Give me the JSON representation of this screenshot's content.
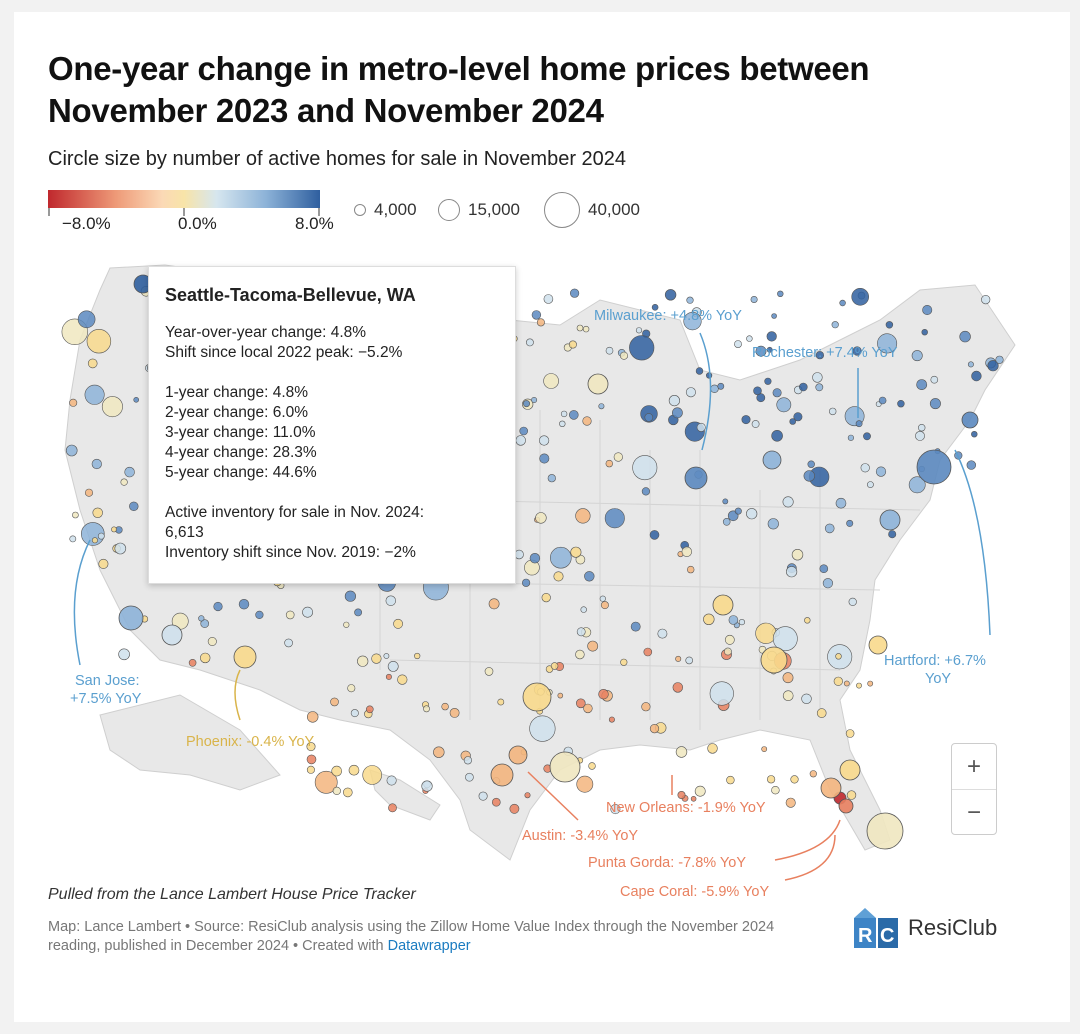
{
  "title": "One-year change in metro-level home prices between November 2023 and November 2024",
  "subtitle": "Circle size by number of active homes for sale in November 2024",
  "color_legend": {
    "min_label": "−8.0%",
    "mid_label": "0.0%",
    "max_label": "8.0%",
    "colors": [
      "#c0282d",
      "#e9896a",
      "#fbd6b0",
      "#f8e4a8",
      "#cfe0ec",
      "#7fa9d3",
      "#2f5f9f"
    ]
  },
  "size_legend": {
    "small": "4,000",
    "medium": "15,000",
    "large": "40,000"
  },
  "tooltip": {
    "title": "Seattle-Tacoma-Bellevue, WA",
    "yoy": "Year-over-year change: 4.8%",
    "shift_peak": "Shift since local 2022 peak: −5.2%",
    "change_1y": "1-year change: 4.8%",
    "change_2y": "2-year change: 6.0%",
    "change_3y": "3-year change: 11.0%",
    "change_4y": "4-year change: 28.3%",
    "change_5y": "5-year change: 44.6%",
    "inventory_label": "Active inventory for sale in Nov. 2024:",
    "inventory_value": "6,613",
    "inventory_shift": "Inventory shift since Nov. 2019: −2%"
  },
  "callouts": {
    "milwaukee": "Milwaukee: +4.8% YoY",
    "rochester": "Rochester: +7.4% YoY",
    "hartford_1": "Hartford: +6.7%",
    "hartford_2": "YoY",
    "san_jose_1": "San Jose:",
    "san_jose_2": "+7.5% YoY",
    "phoenix": "Phoenix: -0.4% YoY",
    "austin": "Austin: -3.4% YoY",
    "new_orleans": "New Orleans: -1.9% YoY",
    "punta_gorda": "Punta Gorda: -7.8% YoY",
    "cape_coral": "Cape Coral: -5.9% YoY"
  },
  "callout_colors": {
    "positive": "#5a9fcf",
    "neutral": "#d9b44a",
    "negative": "#e8805f"
  },
  "zoom": {
    "in": "+",
    "out": "−"
  },
  "note": "Pulled from the Lance Lambert House Price Tracker",
  "source_text": "Map: Lance Lambert • Source: ResiClub analysis using the Zillow Home Value Index through the November 2024 reading, published in December 2024 • Created with ",
  "source_link": "Datawrapper",
  "logo_text": "ResiClub"
}
